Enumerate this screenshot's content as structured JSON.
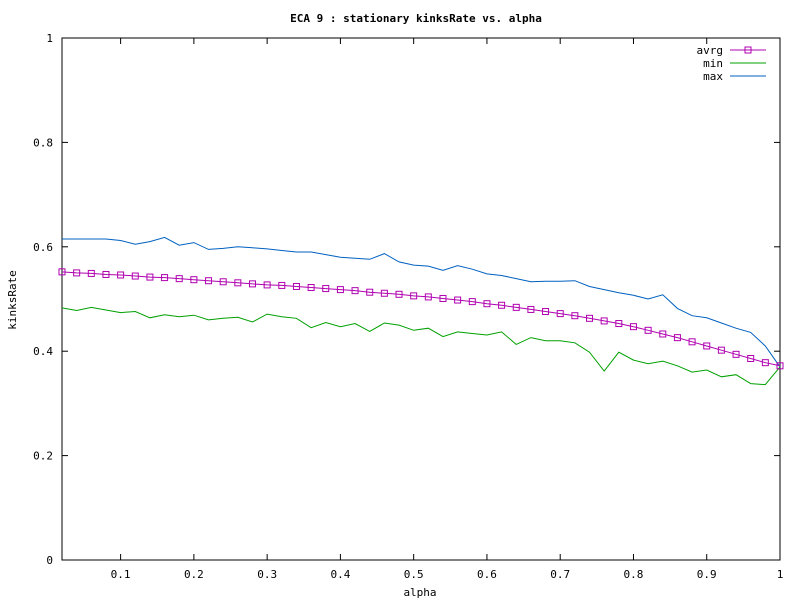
{
  "chart_data": {
    "type": "line",
    "title": "ECA 9 : stationary kinksRate vs. alpha",
    "xlabel": "alpha",
    "ylabel": "kinksRate",
    "xlim": [
      0.02,
      1.0
    ],
    "ylim": [
      0,
      1
    ],
    "x_ticks": [
      0.1,
      0.2,
      0.3,
      0.4,
      0.5,
      0.6,
      0.7,
      0.8,
      0.9,
      1
    ],
    "x_tick_labels": [
      "0.1",
      "0.2",
      "0.3",
      "0.4",
      "0.5",
      "0.6",
      "0.7",
      "0.8",
      "0.9",
      "1"
    ],
    "y_ticks": [
      0,
      0.2,
      0.4,
      0.6,
      0.8,
      1
    ],
    "y_tick_labels": [
      "0",
      "0.2",
      "0.4",
      "0.6",
      "0.8",
      "1"
    ],
    "grid": false,
    "legend_position": "top-right",
    "x": [
      0.02,
      0.04,
      0.06,
      0.08,
      0.1,
      0.12,
      0.14,
      0.16,
      0.18,
      0.2,
      0.22,
      0.24,
      0.26,
      0.28,
      0.3,
      0.32,
      0.34,
      0.36,
      0.38,
      0.4,
      0.42,
      0.44,
      0.46,
      0.48,
      0.5,
      0.52,
      0.54,
      0.56,
      0.58,
      0.6,
      0.62,
      0.64,
      0.66,
      0.68,
      0.7,
      0.72,
      0.74,
      0.76,
      0.78,
      0.8,
      0.82,
      0.84,
      0.86,
      0.88,
      0.9,
      0.92,
      0.94,
      0.96,
      0.98,
      1.0
    ],
    "series": [
      {
        "name": "avrg",
        "color": "#b000b0",
        "marker": "square",
        "values": [
          0.552,
          0.55,
          0.549,
          0.547,
          0.546,
          0.544,
          0.542,
          0.541,
          0.539,
          0.537,
          0.535,
          0.533,
          0.531,
          0.529,
          0.527,
          0.526,
          0.524,
          0.522,
          0.52,
          0.518,
          0.516,
          0.513,
          0.511,
          0.509,
          0.506,
          0.504,
          0.501,
          0.498,
          0.495,
          0.491,
          0.488,
          0.484,
          0.48,
          0.476,
          0.472,
          0.468,
          0.463,
          0.458,
          0.453,
          0.447,
          0.44,
          0.433,
          0.426,
          0.418,
          0.41,
          0.402,
          0.394,
          0.386,
          0.378,
          0.372
        ]
      },
      {
        "name": "min",
        "color": "#00a000",
        "marker": "none",
        "values": [
          0.483,
          0.478,
          0.484,
          0.479,
          0.474,
          0.476,
          0.464,
          0.47,
          0.466,
          0.469,
          0.46,
          0.463,
          0.465,
          0.456,
          0.471,
          0.466,
          0.463,
          0.445,
          0.455,
          0.447,
          0.453,
          0.438,
          0.454,
          0.45,
          0.44,
          0.444,
          0.428,
          0.437,
          0.434,
          0.431,
          0.437,
          0.413,
          0.426,
          0.42,
          0.42,
          0.416,
          0.398,
          0.362,
          0.398,
          0.383,
          0.376,
          0.381,
          0.372,
          0.36,
          0.364,
          0.351,
          0.355,
          0.338,
          0.336,
          0.37
        ]
      },
      {
        "name": "max",
        "color": "#0060c0",
        "marker": "none",
        "values": [
          0.615,
          0.615,
          0.615,
          0.615,
          0.612,
          0.605,
          0.61,
          0.618,
          0.603,
          0.608,
          0.595,
          0.597,
          0.6,
          0.598,
          0.596,
          0.593,
          0.59,
          0.59,
          0.585,
          0.58,
          0.578,
          0.576,
          0.587,
          0.571,
          0.565,
          0.563,
          0.555,
          0.564,
          0.557,
          0.548,
          0.545,
          0.539,
          0.533,
          0.534,
          0.534,
          0.535,
          0.524,
          0.518,
          0.512,
          0.507,
          0.5,
          0.508,
          0.482,
          0.468,
          0.464,
          0.454,
          0.444,
          0.436,
          0.41,
          0.37
        ]
      }
    ]
  }
}
